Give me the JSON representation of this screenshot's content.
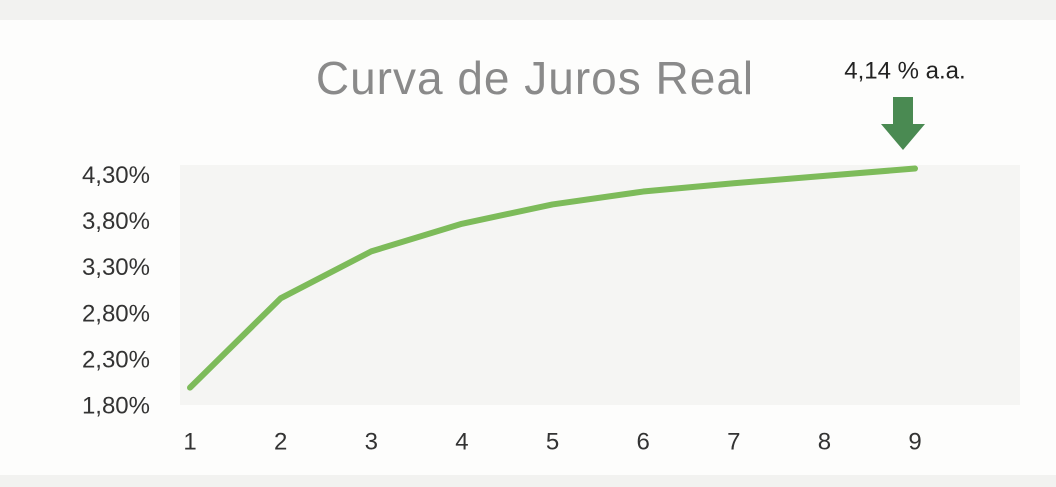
{
  "chart_data": {
    "type": "line",
    "title": "Curva de Juros Real",
    "annotation": "4,14 % a.a.",
    "x": [
      1,
      2,
      3,
      4,
      5,
      6,
      7,
      8,
      9
    ],
    "series": [
      {
        "color": "#7dbb5a",
        "values": [
          2.01,
          2.98,
          3.49,
          3.79,
          4.0,
          4.14,
          4.23,
          4.31,
          4.39
        ]
      }
    ],
    "xlim": [
      1,
      9
    ],
    "xticks": [
      1,
      2,
      3,
      4,
      5,
      6,
      7,
      8,
      9
    ],
    "ylim": [
      1.8,
      4.45
    ],
    "yticks": [
      {
        "value": 1.8,
        "label": "1,80%"
      },
      {
        "value": 2.3,
        "label": "2,30%"
      },
      {
        "value": 2.8,
        "label": "2,80%"
      },
      {
        "value": 3.3,
        "label": "3,30%"
      },
      {
        "value": 3.8,
        "label": "3,80%"
      },
      {
        "value": 4.3,
        "label": "4,30%"
      }
    ],
    "grid": false
  }
}
